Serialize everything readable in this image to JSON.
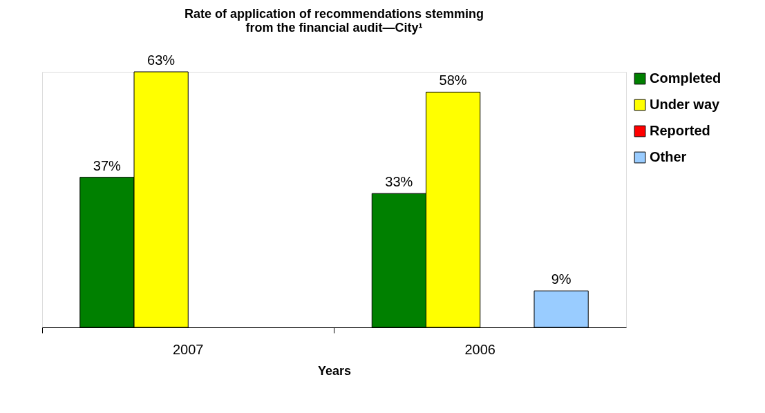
{
  "chart_data": {
    "type": "bar",
    "title": "Rate of application of recommendations stemming\nfrom the financial audit—City¹",
    "xlabel": "Years",
    "categories": [
      "2007",
      "2006"
    ],
    "series": [
      {
        "name": "Completed",
        "color": "#008000",
        "values": [
          37,
          33
        ],
        "value_labels": [
          "37%",
          "33%"
        ]
      },
      {
        "name": "Under way",
        "color": "#ffff00",
        "values": [
          63,
          58
        ],
        "value_labels": [
          "63%",
          "58%"
        ]
      },
      {
        "name": "Reported",
        "color": "#ff0000",
        "values": [
          null,
          null
        ],
        "value_labels": [
          null,
          null
        ]
      },
      {
        "name": "Other",
        "color": "#99ccff",
        "values": [
          null,
          9
        ],
        "value_labels": [
          null,
          "9%"
        ]
      }
    ],
    "legend": "right",
    "grid": false
  }
}
